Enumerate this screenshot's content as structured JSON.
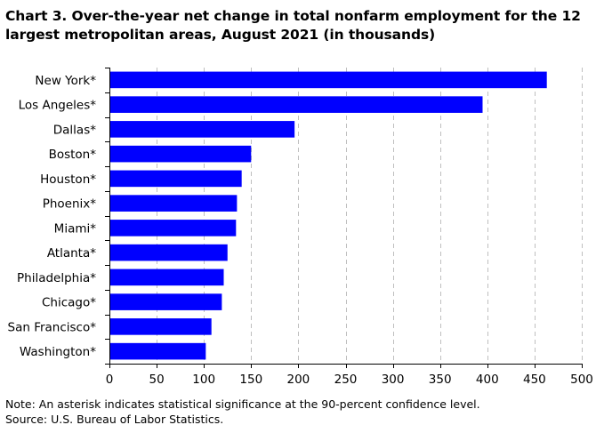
{
  "chart_data": {
    "type": "bar",
    "orientation": "horizontal",
    "title": "Chart 3. Over-the-year net change in total nonfarm employment for the 12 largest metropolitan areas, August 2021 (in thousands)",
    "categories": [
      "New York*",
      "Los Angeles*",
      "Dallas*",
      "Boston*",
      "Houston*",
      "Phoenix*",
      "Miami*",
      "Atlanta*",
      "Philadelphia*",
      "Chicago*",
      "San Francisco*",
      "Washington*"
    ],
    "values": [
      463,
      395,
      196,
      150,
      140,
      135,
      134,
      125,
      121,
      119,
      108,
      102
    ],
    "xlim": [
      0,
      500
    ],
    "x_ticks": [
      "0",
      "50",
      "100",
      "150",
      "200",
      "250",
      "300",
      "350",
      "400",
      "450",
      "500"
    ],
    "xlabel": "",
    "ylabel": "",
    "grid": "vertical dashed",
    "bar_color": "#0000FF",
    "grid_color": "#BFBFBF",
    "legend": "none"
  },
  "notes": {
    "note": "Note: An asterisk indicates statistical significance at the 90-percent confidence level.",
    "source": "Source: U.S. Bureau of Labor Statistics."
  }
}
